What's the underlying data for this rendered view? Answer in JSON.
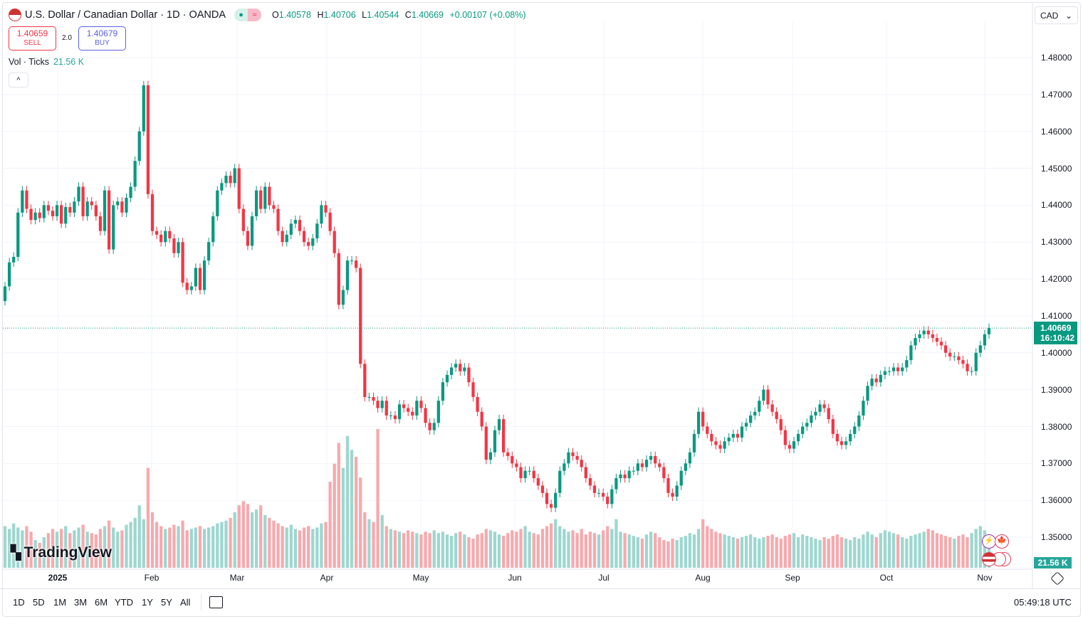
{
  "header": {
    "title": "U.S. Dollar / Canadian Dollar · 1D · OANDA",
    "status_open": "●",
    "status_delayed": "≈",
    "open_label": "O",
    "open": "1.40578",
    "high_label": "H",
    "high": "1.40706",
    "low_label": "L",
    "low": "1.40544",
    "close_label": "C",
    "close": "1.40669",
    "change": "+0.00107 (+0.08%)"
  },
  "trade": {
    "sell_price": "1.40659",
    "sell_label": "SELL",
    "spread": "2.0",
    "buy_price": "1.40679",
    "buy_label": "BUY"
  },
  "volume_legend": {
    "label": "Vol · Ticks",
    "value": "21.56 K"
  },
  "collapse_icon": "chevron-up",
  "collapse_glyph": "^",
  "currency": {
    "value": "CAD",
    "arrow": "⌄"
  },
  "price_axis": [
    "1.48000",
    "1.47000",
    "1.46000",
    "1.45000",
    "1.44000",
    "1.43000",
    "1.42000",
    "1.41000",
    "1.40000",
    "1.39000",
    "1.38000",
    "1.37000",
    "1.36000",
    "1.35000"
  ],
  "last_price": {
    "price": "1.40669",
    "countdown": "16:10:42"
  },
  "last_volume": "21.56 K",
  "time_axis": [
    "2025",
    "Feb",
    "Mar",
    "Apr",
    "May",
    "Jun",
    "Jul",
    "Aug",
    "Sep",
    "Oct",
    "Nov"
  ],
  "logo": {
    "mark": "17",
    "text": "TradingView"
  },
  "timeframes": [
    "1D",
    "5D",
    "1M",
    "3M",
    "6M",
    "YTD",
    "1Y",
    "5Y",
    "All"
  ],
  "clock": "05:49:18 UTC",
  "colors": {
    "up": "#089981",
    "down": "#f23645",
    "vol_up": "#9dd7cf",
    "vol_down": "#f7a9ad",
    "grid": "#f0f3fa"
  },
  "chart_data": {
    "type": "candlestick",
    "symbol": "USDCAD",
    "interval": "1D",
    "ylim": [
      1.35,
      1.48
    ],
    "grid": true,
    "close": [
      1.418,
      1.4245,
      1.426,
      1.438,
      1.444,
      1.439,
      1.436,
      1.438,
      1.4365,
      1.44,
      1.4385,
      1.437,
      1.44,
      1.435,
      1.4395,
      1.438,
      1.441,
      1.445,
      1.437,
      1.441,
      1.44,
      1.437,
      1.433,
      1.444,
      1.428,
      1.44,
      1.441,
      1.438,
      1.442,
      1.445,
      1.452,
      1.46,
      1.4725,
      1.443,
      1.433,
      1.432,
      1.43,
      1.433,
      1.431,
      1.427,
      1.43,
      1.419,
      1.417,
      1.418,
      1.423,
      1.417,
      1.425,
      1.43,
      1.437,
      1.444,
      1.446,
      1.448,
      1.446,
      1.45,
      1.439,
      1.433,
      1.429,
      1.437,
      1.444,
      1.439,
      1.445,
      1.44,
      1.439,
      1.433,
      1.43,
      1.432,
      1.435,
      1.436,
      1.433,
      1.43,
      1.429,
      1.431,
      1.435,
      1.44,
      1.438,
      1.433,
      1.427,
      1.413,
      1.417,
      1.425,
      1.425,
      1.423,
      1.397,
      1.388,
      1.388,
      1.387,
      1.385,
      1.387,
      1.383,
      1.383,
      1.382,
      1.386,
      1.385,
      1.384,
      1.383,
      1.387,
      1.385,
      1.381,
      1.379,
      1.381,
      1.387,
      1.392,
      1.394,
      1.396,
      1.397,
      1.395,
      1.396,
      1.392,
      1.388,
      1.384,
      1.38,
      1.371,
      1.373,
      1.379,
      1.382,
      1.373,
      1.372,
      1.37,
      1.369,
      1.366,
      1.368,
      1.368,
      1.366,
      1.364,
      1.362,
      1.359,
      1.358,
      1.362,
      1.368,
      1.37,
      1.373,
      1.372,
      1.371,
      1.369,
      1.366,
      1.364,
      1.362,
      1.362,
      1.361,
      1.359,
      1.363,
      1.366,
      1.367,
      1.366,
      1.368,
      1.368,
      1.37,
      1.369,
      1.371,
      1.372,
      1.37,
      1.369,
      1.366,
      1.362,
      1.361,
      1.364,
      1.368,
      1.37,
      1.373,
      1.378,
      1.384,
      1.38,
      1.378,
      1.376,
      1.375,
      1.374,
      1.376,
      1.377,
      1.378,
      1.377,
      1.38,
      1.381,
      1.383,
      1.384,
      1.387,
      1.39,
      1.386,
      1.384,
      1.382,
      1.379,
      1.375,
      1.374,
      1.376,
      1.378,
      1.38,
      1.381,
      1.383,
      1.384,
      1.386,
      1.385,
      1.382,
      1.378,
      1.376,
      1.375,
      1.376,
      1.378,
      1.38,
      1.383,
      1.387,
      1.391,
      1.393,
      1.392,
      1.394,
      1.395,
      1.395,
      1.396,
      1.395,
      1.396,
      1.398,
      1.402,
      1.404,
      1.405,
      1.406,
      1.405,
      1.404,
      1.403,
      1.402,
      1.4,
      1.399,
      1.399,
      1.398,
      1.397,
      1.395,
      1.395,
      1.4,
      1.402,
      1.405,
      1.4067
    ],
    "volume_k": [
      30,
      28,
      32,
      29,
      27,
      30,
      26,
      20,
      18,
      22,
      25,
      28,
      26,
      28,
      30,
      25,
      27,
      29,
      31,
      26,
      25,
      24,
      28,
      30,
      34,
      29,
      26,
      27,
      31,
      33,
      36,
      45,
      35,
      72,
      40,
      33,
      30,
      28,
      29,
      31,
      30,
      34,
      27,
      28,
      29,
      30,
      28,
      29,
      30,
      32,
      33,
      34,
      36,
      40,
      45,
      48,
      46,
      40,
      42,
      45,
      38,
      36,
      34,
      32,
      30,
      29,
      31,
      28,
      27,
      29,
      30,
      28,
      29,
      32,
      33,
      62,
      75,
      90,
      72,
      95,
      85,
      80,
      65,
      40,
      35,
      33,
      100,
      38,
      30,
      28,
      27,
      26,
      25,
      27,
      26,
      25,
      24,
      26,
      25,
      27,
      25,
      26,
      24,
      23,
      25,
      26,
      24,
      22,
      21,
      24,
      25,
      28,
      27,
      26,
      24,
      23,
      25,
      27,
      26,
      28,
      30,
      26,
      25,
      24,
      28,
      30,
      32,
      35,
      30,
      28,
      26,
      27,
      25,
      28,
      24,
      26,
      25,
      24,
      27,
      30,
      28,
      35,
      26,
      25,
      24,
      23,
      22,
      21,
      24,
      26,
      25,
      22,
      20,
      19,
      21,
      20,
      22,
      23,
      25,
      24,
      28,
      35,
      30,
      28,
      26,
      25,
      24,
      23,
      22,
      21,
      22,
      23,
      24,
      22,
      21,
      22,
      23,
      24,
      22,
      21,
      23,
      24,
      25,
      22,
      24,
      23,
      22,
      21,
      20,
      22,
      21,
      23,
      24,
      22,
      21,
      20,
      22,
      21,
      24,
      26,
      24,
      22,
      25,
      27,
      26,
      25,
      24,
      22,
      21,
      23,
      24,
      25,
      26,
      28,
      27,
      25,
      24,
      23,
      22,
      21,
      23,
      24,
      22,
      25,
      28,
      30,
      27,
      21.56
    ]
  }
}
